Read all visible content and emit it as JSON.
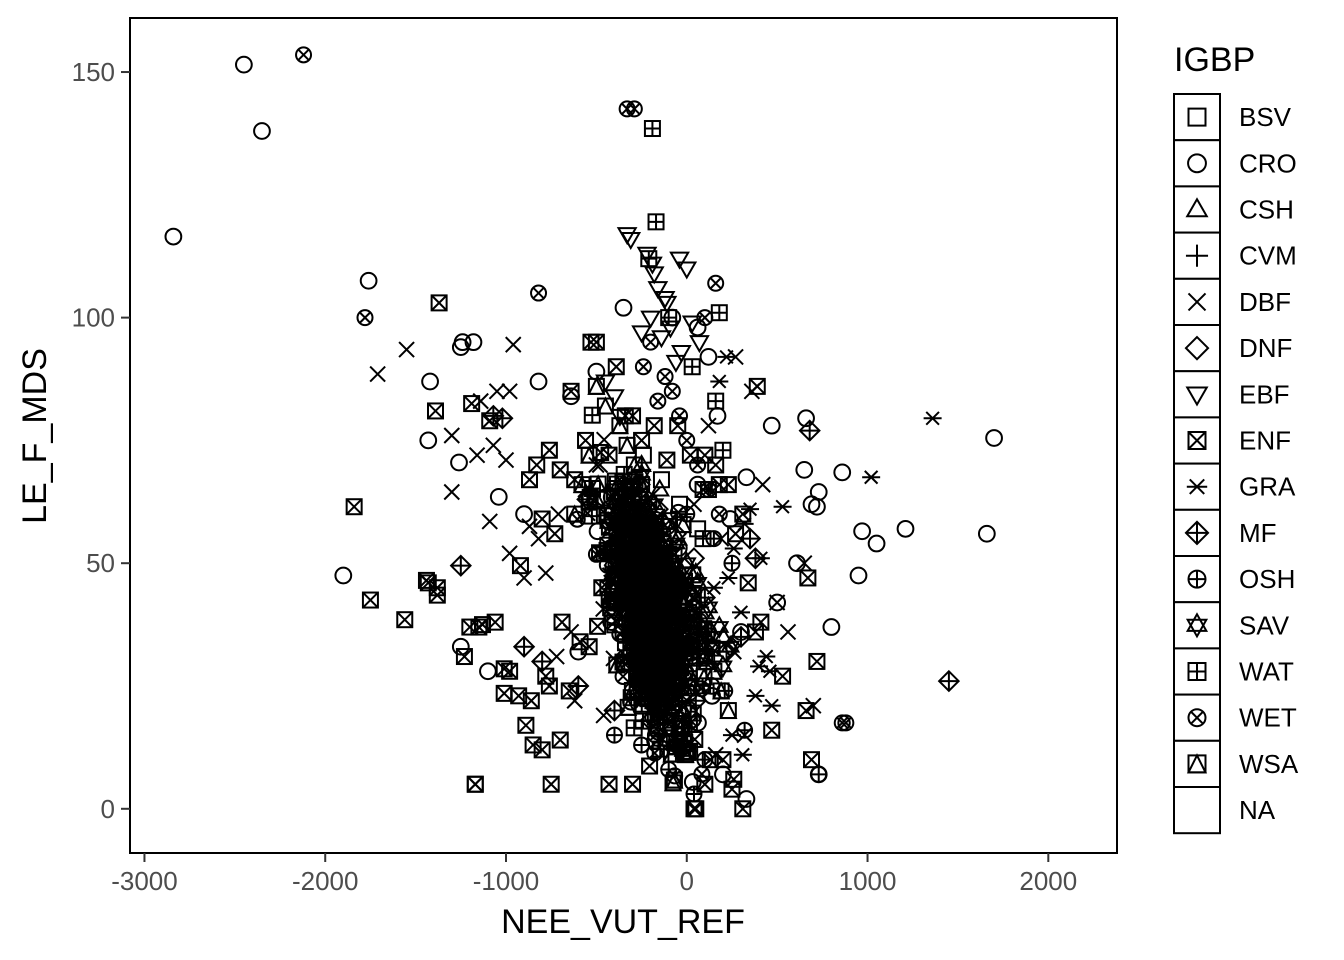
{
  "chart_data": {
    "type": "scatter",
    "title": "",
    "xlabel": "NEE_VUT_REF",
    "ylabel": "LE_F_MDS",
    "xlim": [
      -3080,
      2380
    ],
    "ylim": [
      -9,
      161
    ],
    "x_ticks": [
      -3000,
      -2000,
      -1000,
      0,
      1000,
      2000
    ],
    "y_ticks": [
      0,
      50,
      100,
      150
    ],
    "x_tick_labels": [
      "-3000",
      "-2000",
      "-1000",
      "0",
      "1000",
      "2000"
    ],
    "y_tick_labels": [
      "0",
      "50",
      "100",
      "150"
    ],
    "grid": false,
    "legend": {
      "title": "IGBP",
      "placement": "right",
      "entries": [
        {
          "label": "BSV",
          "shape": "square"
        },
        {
          "label": "CRO",
          "shape": "circle"
        },
        {
          "label": "CSH",
          "shape": "triangle-up"
        },
        {
          "label": "CVM",
          "shape": "plus"
        },
        {
          "label": "DBF",
          "shape": "cross"
        },
        {
          "label": "DNF",
          "shape": "diamond"
        },
        {
          "label": "EBF",
          "shape": "triangle-down"
        },
        {
          "label": "ENF",
          "shape": "square-cross"
        },
        {
          "label": "GRA",
          "shape": "asterisk"
        },
        {
          "label": "MF",
          "shape": "diamond-plus"
        },
        {
          "label": "OSH",
          "shape": "circle-plus"
        },
        {
          "label": "SAV",
          "shape": "star-of-david"
        },
        {
          "label": "WAT",
          "shape": "square-plus"
        },
        {
          "label": "WET",
          "shape": "circle-cross"
        },
        {
          "label": "WSA",
          "shape": "square-triangle"
        },
        {
          "label": "NA",
          "shape": "none"
        }
      ]
    },
    "series": [
      {
        "name": "CRO",
        "shape": "circle",
        "x": [
          -2840,
          -2450,
          -2350,
          -1760,
          -1900,
          -1420,
          -1430,
          -1250,
          -1240,
          -1180,
          -1260,
          -1040,
          -900,
          -820,
          -640,
          660,
          730,
          720,
          860,
          950,
          1050,
          1210,
          1660,
          1700,
          970,
          800,
          610,
          330,
          240,
          170,
          120,
          60,
          -80,
          -350,
          -500,
          -190,
          60,
          300,
          470,
          650,
          500,
          -1250,
          -1100,
          -600,
          -420,
          140,
          200,
          330,
          730,
          690
        ],
        "y": [
          116.5,
          151.5,
          138,
          107.5,
          47.5,
          87,
          75,
          94,
          95,
          95,
          70.5,
          63.5,
          60,
          87,
          84,
          79.5,
          64.5,
          61.5,
          68.5,
          47.5,
          54,
          57,
          56,
          75.5,
          56.5,
          37,
          50,
          67.5,
          59,
          80,
          92,
          98,
          100,
          102,
          89,
          56,
          66,
          36,
          78,
          69,
          42,
          33,
          28,
          32,
          42,
          23,
          7,
          2,
          7,
          62
        ]
      },
      {
        "name": "DBF",
        "shape": "cross",
        "x": [
          -1710,
          -1550,
          -1300,
          -1300,
          -1160,
          -1140,
          -1090,
          -1050,
          -980,
          -960,
          -870,
          -780,
          -710,
          -640,
          -560,
          -500,
          -390,
          -280,
          -160,
          -60,
          40,
          120,
          190,
          270,
          360,
          420,
          500,
          560,
          650,
          700,
          -980,
          -1070,
          -1000,
          -900,
          -820,
          -720,
          -620,
          -460,
          260,
          160,
          320
        ],
        "y": [
          88.5,
          93.5,
          76,
          64.5,
          72,
          83,
          58.5,
          85,
          85,
          94.5,
          57.5,
          48,
          60,
          36,
          65,
          70,
          49,
          58,
          45.5,
          35,
          62,
          78,
          55,
          92,
          85,
          66,
          42,
          36,
          50,
          21,
          52,
          74,
          71,
          47,
          55,
          31,
          22,
          19,
          32,
          11,
          15
        ]
      },
      {
        "name": "EBF",
        "shape": "triangle-down",
        "x": [
          -330,
          -310,
          -220,
          -190,
          -180,
          -160,
          -120,
          -110,
          -40,
          0,
          -200,
          -250,
          -140,
          -90,
          30,
          70,
          -60,
          -30,
          -450,
          -400,
          -370
        ],
        "y": [
          117,
          116,
          113,
          111,
          109,
          106,
          104,
          103,
          112,
          110,
          100,
          97,
          96,
          98,
          99,
          95,
          91,
          93,
          87,
          84,
          80
        ]
      },
      {
        "name": "ENF",
        "shape": "square-cross",
        "x": [
          -1370,
          -1840,
          -1750,
          -1560,
          -1440,
          -1390,
          -1380,
          -1170,
          -1230,
          -1190,
          -1130,
          -1010,
          -1010,
          -920,
          -800,
          -730,
          -530,
          -640,
          -870,
          -830,
          -760,
          -700,
          -620,
          -560,
          -430,
          -340,
          -300,
          -250,
          -180,
          -110,
          -50,
          20,
          90,
          160,
          230,
          310,
          390,
          470,
          530,
          660,
          690,
          720,
          670,
          -1170,
          -750,
          -430,
          -300,
          310,
          40,
          50,
          100,
          200,
          250,
          130,
          -500,
          -390,
          -980,
          -930,
          -860,
          -780,
          -690,
          -590,
          -1090,
          -1060,
          -890,
          -800,
          -700,
          -650,
          -540,
          -470,
          410,
          340,
          270,
          180,
          100,
          -1380,
          -1430,
          -1200,
          -1150,
          -850,
          -760,
          260,
          380
        ],
        "y": [
          103,
          61.5,
          42.5,
          38.5,
          46.5,
          81,
          43.5,
          5,
          31,
          82.5,
          37.5,
          28.5,
          23.5,
          49.5,
          59,
          56,
          95,
          85,
          67,
          70,
          73,
          69,
          67,
          75,
          72,
          80,
          80,
          75,
          78,
          71,
          78,
          72,
          65,
          70,
          66,
          60,
          86,
          16,
          27,
          20,
          10,
          30,
          47,
          5,
          5,
          5,
          5,
          0,
          0,
          0,
          5,
          10,
          4,
          10,
          95,
          90,
          28,
          23,
          22,
          27,
          38,
          34,
          79,
          38,
          17,
          12,
          14,
          24,
          33,
          45,
          38,
          46,
          56,
          66,
          72,
          45,
          46,
          37,
          37,
          13,
          25,
          6,
          36
        ]
      },
      {
        "name": "GRA",
        "shape": "asterisk",
        "x": [
          1360,
          1020,
          530,
          410,
          350,
          320,
          260,
          220,
          180,
          440,
          400,
          380,
          460,
          310,
          250,
          150,
          100,
          300,
          470,
          230
        ],
        "y": [
          79.5,
          67.5,
          61.5,
          51,
          61,
          58,
          53,
          92,
          87,
          31,
          29,
          23,
          28,
          11,
          15,
          45,
          30,
          40,
          21,
          47
        ]
      },
      {
        "name": "MF",
        "shape": "diamond-plus",
        "x": [
          1450,
          680,
          -1250,
          -1070,
          -550,
          -300,
          -100,
          100,
          300,
          380,
          220,
          50,
          -200,
          -400,
          -600,
          -800,
          -900,
          -1020,
          350
        ],
        "y": [
          26,
          77,
          49.5,
          80,
          63,
          57,
          47,
          43,
          35,
          51,
          32,
          22,
          18,
          20,
          25,
          30,
          33,
          79.5,
          55
        ]
      },
      {
        "name": "OSH",
        "shape": "circle-plus",
        "x": [
          730,
          100,
          40,
          -100,
          -250,
          -400,
          -260,
          -130,
          0,
          120,
          210,
          320,
          -40,
          150,
          250
        ],
        "y": [
          7,
          10,
          3,
          8,
          13,
          15,
          31,
          42,
          60,
          36,
          24,
          16,
          45,
          55,
          50
        ]
      },
      {
        "name": "SAV",
        "shape": "star-of-david",
        "x": [
          -320,
          -280,
          -210,
          -150,
          -100,
          -40,
          20,
          80,
          140,
          200,
          -250,
          -180,
          -120,
          -60,
          0,
          60,
          120,
          180,
          240
        ],
        "y": [
          63,
          58,
          55,
          51,
          48,
          44,
          40,
          37,
          33,
          29,
          68,
          62,
          58,
          54,
          50,
          46,
          41,
          37,
          33
        ]
      },
      {
        "name": "WAT",
        "shape": "square-plus",
        "x": [
          -190,
          -170,
          180,
          200,
          -210,
          -100,
          30,
          160,
          120,
          90,
          -40,
          -130,
          -220
        ],
        "y": [
          138.5,
          119.5,
          101,
          73,
          112,
          100,
          90,
          83,
          65,
          55,
          45,
          35,
          25
        ]
      },
      {
        "name": "WET",
        "shape": "circle-cross",
        "x": [
          -2120,
          -330,
          -290,
          -1780,
          -820,
          860,
          880,
          160,
          100,
          -200,
          -120,
          -80,
          -40,
          0,
          60,
          120,
          180,
          -240,
          -160
        ],
        "y": [
          153.5,
          142.5,
          142.5,
          100,
          105,
          17.5,
          17.5,
          107,
          100,
          95,
          88,
          85,
          80,
          75,
          70,
          65,
          60,
          90,
          83
        ]
      },
      {
        "name": "WSA",
        "shape": "square-triangle",
        "x": [
          -370,
          -330,
          -290,
          -250,
          -210,
          -170,
          -130,
          -90,
          -50,
          -10,
          30,
          70,
          110,
          -450,
          -500,
          -540,
          -580,
          -620,
          150,
          190,
          230
        ],
        "y": [
          78,
          74,
          70,
          66,
          62,
          58,
          54,
          50,
          46,
          42,
          38,
          34,
          30,
          82,
          86,
          72,
          66,
          60,
          28,
          24,
          20
        ]
      },
      {
        "name": "CSH",
        "shape": "triangle-up",
        "x": [
          -300,
          -200,
          -100,
          0,
          100,
          200,
          -250,
          -150,
          -50,
          50
        ],
        "y": [
          60,
          55,
          50,
          45,
          40,
          35,
          70,
          65,
          55,
          48
        ]
      },
      {
        "name": "CVM",
        "shape": "plus",
        "x": [
          -280,
          -180,
          -80,
          20,
          120,
          -230,
          -130,
          -30,
          70
        ],
        "y": [
          52,
          47,
          42,
          37,
          32,
          62,
          57,
          46,
          41
        ]
      },
      {
        "name": "DNF",
        "shape": "diamond",
        "x": [
          -260,
          -160,
          -60,
          40,
          -210,
          -110,
          -10
        ],
        "y": [
          66,
          61,
          56,
          51,
          44,
          39,
          34
        ]
      },
      {
        "name": "BSV",
        "shape": "square",
        "x": [
          -240,
          -140,
          -40,
          60,
          -190,
          -90,
          10
        ],
        "y": [
          72,
          67,
          62,
          57,
          50,
          45,
          40
        ]
      }
    ],
    "dense_cluster": {
      "name": "ENF",
      "note_center_x": -200,
      "note_center_y": 40,
      "x_spread": 260,
      "y_spread": 18
    }
  }
}
